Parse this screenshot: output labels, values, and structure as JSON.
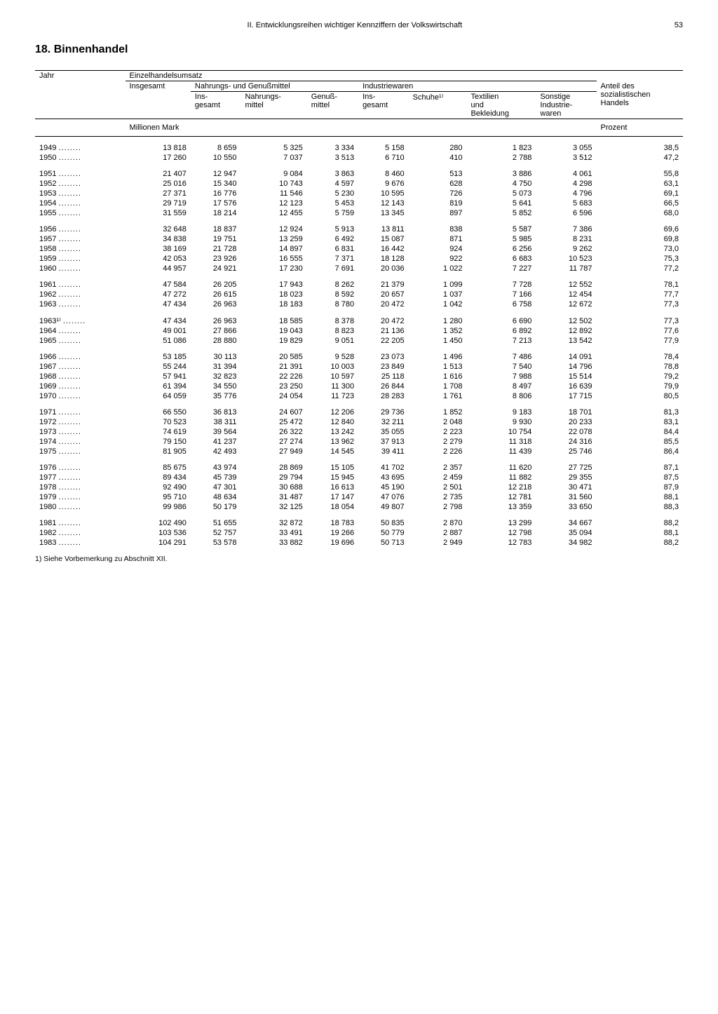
{
  "header": {
    "chapter": "II. Entwicklungsreihen wichtiger Kennziffern der Volkswirtschaft",
    "page": "53"
  },
  "section_title": "18. Binnenhandel",
  "table": {
    "head": {
      "jahr": "Jahr",
      "einzelhandelsumsatz": "Einzelhandelsumsatz",
      "insgesamt": "Insgesamt",
      "nahrung_genuss": "Nahrungs- und Genußmittel",
      "ins_gesamt": "Ins-\ngesamt",
      "nahrungsmittel": "Nahrungs-\nmittel",
      "genussmittel": "Genuß-\nmittel",
      "industriewaren": "Industriewaren",
      "schuhe": "Schuhe¹⁾",
      "textilien": "Textilien\nund\nBekleidung",
      "sonstige": "Sonstige\nIndustrie-\nwaren",
      "anteil": "Anteil des\nsozialistischen\nHandels",
      "unit_mark": "Millionen Mark",
      "unit_prozent": "Prozent"
    },
    "groups": [
      [
        {
          "y": "1949",
          "c": [
            "13 818",
            "8 659",
            "5 325",
            "3 334",
            "5 158",
            "280",
            "1 823",
            "3 055",
            "38,5"
          ]
        },
        {
          "y": "1950",
          "c": [
            "17 260",
            "10 550",
            "7 037",
            "3 513",
            "6 710",
            "410",
            "2 788",
            "3 512",
            "47,2"
          ]
        }
      ],
      [
        {
          "y": "1951",
          "c": [
            "21 407",
            "12 947",
            "9 084",
            "3 863",
            "8 460",
            "513",
            "3 886",
            "4 061",
            "55,8"
          ]
        },
        {
          "y": "1952",
          "c": [
            "25 016",
            "15 340",
            "10 743",
            "4 597",
            "9 676",
            "628",
            "4 750",
            "4 298",
            "63,1"
          ]
        },
        {
          "y": "1953",
          "c": [
            "27 371",
            "16 776",
            "11 546",
            "5 230",
            "10 595",
            "726",
            "5 073",
            "4 796",
            "69,1"
          ]
        },
        {
          "y": "1954",
          "c": [
            "29 719",
            "17 576",
            "12 123",
            "5 453",
            "12 143",
            "819",
            "5 641",
            "5 683",
            "66,5"
          ]
        },
        {
          "y": "1955",
          "c": [
            "31 559",
            "18 214",
            "12 455",
            "5 759",
            "13 345",
            "897",
            "5 852",
            "6 596",
            "68,0"
          ]
        }
      ],
      [
        {
          "y": "1956",
          "c": [
            "32 648",
            "18 837",
            "12 924",
            "5 913",
            "13 811",
            "838",
            "5 587",
            "7 386",
            "69,6"
          ]
        },
        {
          "y": "1957",
          "c": [
            "34 838",
            "19 751",
            "13 259",
            "6 492",
            "15 087",
            "871",
            "5 985",
            "8 231",
            "69,8"
          ]
        },
        {
          "y": "1958",
          "c": [
            "38 169",
            "21 728",
            "14 897",
            "6 831",
            "16 442",
            "924",
            "6 256",
            "9 262",
            "73,0"
          ]
        },
        {
          "y": "1959",
          "c": [
            "42 053",
            "23 926",
            "16 555",
            "7 371",
            "18 128",
            "922",
            "6 683",
            "10 523",
            "75,3"
          ]
        },
        {
          "y": "1960",
          "c": [
            "44 957",
            "24 921",
            "17 230",
            "7 691",
            "20 036",
            "1 022",
            "7 227",
            "11 787",
            "77,2"
          ]
        }
      ],
      [
        {
          "y": "1961",
          "c": [
            "47 584",
            "26 205",
            "17 943",
            "8 262",
            "21 379",
            "1 099",
            "7 728",
            "12 552",
            "78,1"
          ]
        },
        {
          "y": "1962",
          "c": [
            "47 272",
            "26 615",
            "18 023",
            "8 592",
            "20 657",
            "1 037",
            "7 166",
            "12 454",
            "77,7"
          ]
        },
        {
          "y": "1963",
          "c": [
            "47 434",
            "26 963",
            "18 183",
            "8 780",
            "20 472",
            "1 042",
            "6 758",
            "12 672",
            "77,3"
          ]
        }
      ],
      [
        {
          "y": "1963¹⁾",
          "c": [
            "47 434",
            "26 963",
            "18 585",
            "8 378",
            "20 472",
            "1 280",
            "6 690",
            "12 502",
            "77,3"
          ]
        },
        {
          "y": "1964",
          "c": [
            "49 001",
            "27 866",
            "19 043",
            "8 823",
            "21 136",
            "1 352",
            "6 892",
            "12 892",
            "77,6"
          ]
        },
        {
          "y": "1965",
          "c": [
            "51 086",
            "28 880",
            "19 829",
            "9 051",
            "22 205",
            "1 450",
            "7 213",
            "13 542",
            "77,9"
          ]
        }
      ],
      [
        {
          "y": "1966",
          "c": [
            "53 185",
            "30 113",
            "20 585",
            "9 528",
            "23 073",
            "1 496",
            "7 486",
            "14 091",
            "78,4"
          ]
        },
        {
          "y": "1967",
          "c": [
            "55 244",
            "31 394",
            "21 391",
            "10 003",
            "23 849",
            "1 513",
            "7 540",
            "14 796",
            "78,8"
          ]
        },
        {
          "y": "1968",
          "c": [
            "57 941",
            "32 823",
            "22 226",
            "10 597",
            "25 118",
            "1 616",
            "7 988",
            "15 514",
            "79,2"
          ]
        },
        {
          "y": "1969",
          "c": [
            "61 394",
            "34 550",
            "23 250",
            "11 300",
            "26 844",
            "1 708",
            "8 497",
            "16 639",
            "79,9"
          ]
        },
        {
          "y": "1970",
          "c": [
            "64 059",
            "35 776",
            "24 054",
            "11 723",
            "28 283",
            "1 761",
            "8 806",
            "17 715",
            "80,5"
          ]
        }
      ],
      [
        {
          "y": "1971",
          "c": [
            "66 550",
            "36 813",
            "24 607",
            "12 206",
            "29 736",
            "1 852",
            "9 183",
            "18 701",
            "81,3"
          ]
        },
        {
          "y": "1972",
          "c": [
            "70 523",
            "38 311",
            "25 472",
            "12 840",
            "32 211",
            "2 048",
            "9 930",
            "20 233",
            "83,1"
          ]
        },
        {
          "y": "1973",
          "c": [
            "74 619",
            "39 564",
            "26 322",
            "13 242",
            "35 055",
            "2 223",
            "10 754",
            "22 078",
            "84,4"
          ]
        },
        {
          "y": "1974",
          "c": [
            "79 150",
            "41 237",
            "27 274",
            "13 962",
            "37 913",
            "2 279",
            "11 318",
            "24 316",
            "85,5"
          ]
        },
        {
          "y": "1975",
          "c": [
            "81 905",
            "42 493",
            "27 949",
            "14 545",
            "39 411",
            "2 226",
            "11 439",
            "25 746",
            "86,4"
          ]
        }
      ],
      [
        {
          "y": "1976",
          "c": [
            "85 675",
            "43 974",
            "28 869",
            "15 105",
            "41 702",
            "2 357",
            "11 620",
            "27 725",
            "87,1"
          ]
        },
        {
          "y": "1977",
          "c": [
            "89 434",
            "45 739",
            "29 794",
            "15 945",
            "43 695",
            "2 459",
            "11 882",
            "29 355",
            "87,5"
          ]
        },
        {
          "y": "1978",
          "c": [
            "92 490",
            "47 301",
            "30 688",
            "16 613",
            "45 190",
            "2 501",
            "12 218",
            "30 471",
            "87,9"
          ]
        },
        {
          "y": "1979",
          "c": [
            "95 710",
            "48 634",
            "31 487",
            "17 147",
            "47 076",
            "2 735",
            "12 781",
            "31 560",
            "88,1"
          ]
        },
        {
          "y": "1980",
          "c": [
            "99 986",
            "50 179",
            "32 125",
            "18 054",
            "49 807",
            "2 798",
            "13 359",
            "33 650",
            "88,3"
          ]
        }
      ],
      [
        {
          "y": "1981",
          "c": [
            "102 490",
            "51 655",
            "32 872",
            "18 783",
            "50 835",
            "2 870",
            "13 299",
            "34 667",
            "88,2"
          ]
        },
        {
          "y": "1982",
          "c": [
            "103 536",
            "52 757",
            "33 491",
            "19 266",
            "50 779",
            "2 887",
            "12 798",
            "35 094",
            "88,1"
          ]
        },
        {
          "y": "1983",
          "c": [
            "104 291",
            "53 578",
            "33 882",
            "19 696",
            "50 713",
            "2 949",
            "12 783",
            "34 982",
            "88,2"
          ]
        }
      ]
    ]
  },
  "footnote": "1) Siehe Vorbemerkung zu Abschnitt XII."
}
